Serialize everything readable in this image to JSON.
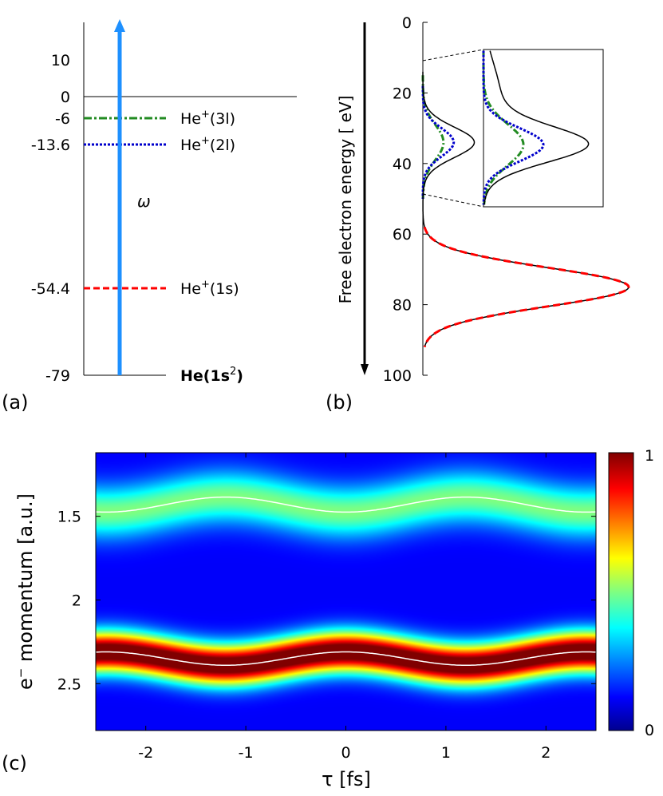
{
  "chart_data": [
    {
      "panel": "(a)",
      "type": "energy_level_diagram",
      "title": "",
      "yaxis": {
        "ticks": [
          10,
          0,
          -6,
          -13.6,
          -54.4,
          -79
        ],
        "range": [
          -79,
          18
        ]
      },
      "levels": [
        {
          "energy": 0,
          "label": "",
          "style": "solid",
          "color": "#000000"
        },
        {
          "energy": -6,
          "label": "He",
          "sup": "+",
          "post": "(3l)",
          "style": "dashdot",
          "color": "#228b22"
        },
        {
          "energy": -13.6,
          "label": "He",
          "sup": "+",
          "post": "(2l)",
          "style": "dotted",
          "color": "#0000cc"
        },
        {
          "energy": -54.4,
          "label": "He",
          "sup": "+",
          "post": "(1s)",
          "style": "dashed",
          "color": "#ff0000"
        }
      ],
      "ground": {
        "energy": -79,
        "label": "He(1s",
        "sup": "2",
        "post": ")"
      },
      "photon": {
        "label": "ω",
        "color": "#1e90ff"
      }
    },
    {
      "panel": "(b)",
      "type": "line",
      "ylabel": "Free electron energy [ eV]",
      "ylim": [
        0,
        100
      ],
      "yticks": [
        0,
        20,
        40,
        60,
        80,
        100
      ],
      "series": [
        {
          "name": "He+(3l)",
          "color": "#228b22",
          "style": "dashdot",
          "peak_energy": 34,
          "sigma": 5,
          "amplitude": 0.1
        },
        {
          "name": "He+(2l)",
          "color": "#0000cc",
          "style": "dotted",
          "peak_energy": 34,
          "sigma": 4,
          "amplitude": 0.15
        },
        {
          "name": "He+(1s)",
          "color": "#ff0000",
          "style": "dashed",
          "peak_energy": 75,
          "sigma": 5.5,
          "amplitude": 1.0
        },
        {
          "name": "total",
          "color": "#000000",
          "style": "solid"
        }
      ],
      "inset": {
        "range": [
          11,
          49
        ],
        "description": "zoom of He+(n=2,3) region"
      }
    },
    {
      "panel": "(c)",
      "type": "heatmap",
      "xlabel": "τ [fs]",
      "ylabel": "e",
      "ylabel_sup": "−",
      "ylabel_post": " momentum [a.u.]",
      "xlim": [
        -2.5,
        2.5
      ],
      "xticks": [
        -2,
        -1,
        0,
        1,
        2
      ],
      "ylim": [
        1.12,
        2.78
      ],
      "yticks": [
        1.5,
        2,
        2.5
      ],
      "colorbar": {
        "min": 0,
        "max": 1,
        "labels": [
          "1",
          "0"
        ]
      },
      "bands": [
        {
          "name": "upper",
          "center": 1.43,
          "modulation": 0.045,
          "width": 0.11,
          "amplitude": 0.38
        },
        {
          "name": "lower",
          "center": 2.35,
          "modulation": 0.04,
          "width": 0.085,
          "amplitude": 1.0
        }
      ],
      "period_fs": 2.4
    }
  ],
  "panel_labels": [
    "(a)",
    "(b)",
    "(c)"
  ]
}
